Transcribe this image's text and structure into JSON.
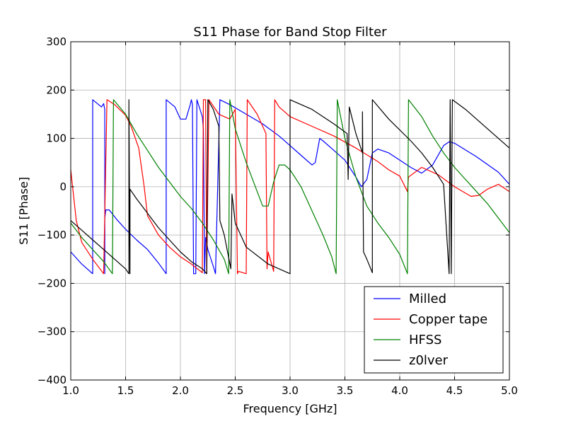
{
  "chart_data": {
    "type": "line",
    "title": "S11 Phase for Band Stop Filter",
    "xlabel": "Frequency [GHz]",
    "ylabel": "S11 [Phase]",
    "xlim": [
      1.0,
      5.0
    ],
    "ylim": [
      -400,
      300
    ],
    "xticks": [
      "1.0",
      "1.5",
      "2.0",
      "2.5",
      "3.0",
      "3.5",
      "4.0",
      "4.5",
      "5.0"
    ],
    "yticks": [
      "300",
      "200",
      "100",
      "0",
      "−100",
      "−200",
      "−300",
      "−400"
    ],
    "grid": true,
    "legend_position": "lower-right",
    "series": [
      {
        "name": "Milled",
        "color": "#0000ff",
        "points": [
          [
            1.0,
            -135
          ],
          [
            1.1,
            -160
          ],
          [
            1.2,
            -180
          ],
          [
            1.2,
            180
          ],
          [
            1.28,
            165
          ],
          [
            1.3,
            172
          ],
          [
            1.31,
            160
          ],
          [
            1.31,
            -180
          ],
          [
            1.31,
            -65
          ],
          [
            1.32,
            -48
          ],
          [
            1.35,
            -48
          ],
          [
            1.42,
            -68
          ],
          [
            1.5,
            -88
          ],
          [
            1.6,
            -110
          ],
          [
            1.7,
            -130
          ],
          [
            1.8,
            -158
          ],
          [
            1.87,
            -180
          ],
          [
            1.87,
            180
          ],
          [
            1.95,
            165
          ],
          [
            2.0,
            140
          ],
          [
            2.05,
            140
          ],
          [
            2.09,
            170
          ],
          [
            2.1,
            180
          ],
          [
            2.11,
            170
          ],
          [
            2.12,
            -180
          ],
          [
            2.14,
            -180
          ],
          [
            2.15,
            180
          ],
          [
            2.2,
            145
          ],
          [
            2.21,
            120
          ],
          [
            2.22,
            -180
          ],
          [
            2.23,
            -105
          ],
          [
            2.25,
            -130
          ],
          [
            2.3,
            -165
          ],
          [
            2.32,
            -180
          ],
          [
            2.36,
            180
          ],
          [
            2.45,
            170
          ],
          [
            2.6,
            150
          ],
          [
            2.75,
            130
          ],
          [
            2.9,
            105
          ],
          [
            3.0,
            85
          ],
          [
            3.1,
            65
          ],
          [
            3.2,
            45
          ],
          [
            3.23,
            50
          ],
          [
            3.27,
            100
          ],
          [
            3.3,
            95
          ],
          [
            3.4,
            75
          ],
          [
            3.5,
            55
          ],
          [
            3.6,
            20
          ],
          [
            3.65,
            0
          ],
          [
            3.7,
            15
          ],
          [
            3.75,
            70
          ],
          [
            3.8,
            78
          ],
          [
            3.9,
            70
          ],
          [
            4.0,
            55
          ],
          [
            4.1,
            40
          ],
          [
            4.2,
            28
          ],
          [
            4.3,
            45
          ],
          [
            4.4,
            85
          ],
          [
            4.45,
            93
          ],
          [
            4.5,
            90
          ],
          [
            4.7,
            62
          ],
          [
            4.9,
            30
          ],
          [
            5.0,
            5
          ]
        ]
      },
      {
        "name": "Copper tape",
        "color": "#ff0000",
        "points": [
          [
            1.0,
            35
          ],
          [
            1.05,
            -70
          ],
          [
            1.1,
            -115
          ],
          [
            1.2,
            -150
          ],
          [
            1.3,
            -180
          ],
          [
            1.33,
            180
          ],
          [
            1.4,
            170
          ],
          [
            1.5,
            148
          ],
          [
            1.55,
            125
          ],
          [
            1.62,
            80
          ],
          [
            1.67,
            0
          ],
          [
            1.7,
            -60
          ],
          [
            1.8,
            -100
          ],
          [
            1.9,
            -125
          ],
          [
            2.0,
            -145
          ],
          [
            2.1,
            -160
          ],
          [
            2.2,
            -178
          ],
          [
            2.21,
            180
          ],
          [
            2.23,
            180
          ],
          [
            2.24,
            -180
          ],
          [
            2.26,
            180
          ],
          [
            2.35,
            150
          ],
          [
            2.45,
            140
          ],
          [
            2.5,
            160
          ],
          [
            2.52,
            -180
          ],
          [
            2.53,
            -175
          ],
          [
            2.6,
            -180
          ],
          [
            2.61,
            180
          ],
          [
            2.7,
            150
          ],
          [
            2.76,
            120
          ],
          [
            2.78,
            110
          ],
          [
            2.79,
            -170
          ],
          [
            2.8,
            -135
          ],
          [
            2.85,
            -175
          ],
          [
            2.86,
            180
          ],
          [
            2.9,
            165
          ],
          [
            3.0,
            145
          ],
          [
            3.2,
            125
          ],
          [
            3.4,
            105
          ],
          [
            3.6,
            80
          ],
          [
            3.8,
            52
          ],
          [
            3.9,
            35
          ],
          [
            4.0,
            22
          ],
          [
            4.07,
            -10
          ],
          [
            4.08,
            20
          ],
          [
            4.2,
            40
          ],
          [
            4.35,
            25
          ],
          [
            4.5,
            0
          ],
          [
            4.65,
            -20
          ],
          [
            4.72,
            -18
          ],
          [
            4.8,
            -5
          ],
          [
            4.9,
            5
          ],
          [
            5.0,
            -10
          ]
        ]
      },
      {
        "name": "HFSS",
        "color": "#008000",
        "points": [
          [
            1.0,
            -75
          ],
          [
            1.1,
            -105
          ],
          [
            1.2,
            -130
          ],
          [
            1.3,
            -155
          ],
          [
            1.38,
            -180
          ],
          [
            1.39,
            180
          ],
          [
            1.5,
            150
          ],
          [
            1.6,
            110
          ],
          [
            1.7,
            75
          ],
          [
            1.8,
            40
          ],
          [
            1.9,
            10
          ],
          [
            2.0,
            -20
          ],
          [
            2.1,
            -45
          ],
          [
            2.2,
            -75
          ],
          [
            2.3,
            -110
          ],
          [
            2.4,
            -150
          ],
          [
            2.44,
            -180
          ],
          [
            2.45,
            180
          ],
          [
            2.5,
            120
          ],
          [
            2.6,
            50
          ],
          [
            2.7,
            -10
          ],
          [
            2.75,
            -40
          ],
          [
            2.8,
            -40
          ],
          [
            2.85,
            10
          ],
          [
            2.9,
            45
          ],
          [
            2.95,
            45
          ],
          [
            3.0,
            35
          ],
          [
            3.1,
            0
          ],
          [
            3.2,
            -50
          ],
          [
            3.3,
            -100
          ],
          [
            3.38,
            -145
          ],
          [
            3.42,
            -180
          ],
          [
            3.43,
            180
          ],
          [
            3.5,
            100
          ],
          [
            3.6,
            20
          ],
          [
            3.7,
            -40
          ],
          [
            3.8,
            -75
          ],
          [
            3.9,
            -105
          ],
          [
            4.0,
            -140
          ],
          [
            4.07,
            -180
          ],
          [
            4.08,
            180
          ],
          [
            4.2,
            145
          ],
          [
            4.3,
            105
          ],
          [
            4.4,
            70
          ],
          [
            4.5,
            40
          ],
          [
            4.6,
            15
          ],
          [
            4.7,
            -10
          ],
          [
            4.8,
            -35
          ],
          [
            4.9,
            -65
          ],
          [
            5.0,
            -95
          ]
        ]
      },
      {
        "name": "z0lver",
        "color": "#000000",
        "points": [
          [
            1.0,
            -70
          ],
          [
            1.1,
            -90
          ],
          [
            1.2,
            -110
          ],
          [
            1.3,
            -130
          ],
          [
            1.4,
            -150
          ],
          [
            1.5,
            -170
          ],
          [
            1.53,
            -180
          ],
          [
            1.53,
            180
          ],
          [
            1.54,
            -180
          ],
          [
            1.54,
            -5
          ],
          [
            1.6,
            -25
          ],
          [
            1.7,
            -55
          ],
          [
            1.8,
            -85
          ],
          [
            1.9,
            -110
          ],
          [
            2.0,
            -135
          ],
          [
            2.1,
            -155
          ],
          [
            2.2,
            -170
          ],
          [
            2.24,
            -180
          ],
          [
            2.25,
            180
          ],
          [
            2.3,
            160
          ],
          [
            2.35,
            125
          ],
          [
            2.36,
            -70
          ],
          [
            2.4,
            -100
          ],
          [
            2.46,
            -170
          ],
          [
            2.47,
            -15
          ],
          [
            2.5,
            -75
          ],
          [
            2.6,
            -125
          ],
          [
            2.8,
            -160
          ],
          [
            3.0,
            -180
          ],
          [
            3.0,
            180
          ],
          [
            3.2,
            160
          ],
          [
            3.4,
            130
          ],
          [
            3.52,
            110
          ],
          [
            3.53,
            15
          ],
          [
            3.54,
            165
          ],
          [
            3.6,
            110
          ],
          [
            3.66,
            70
          ],
          [
            3.66,
            155
          ],
          [
            3.67,
            -135
          ],
          [
            3.7,
            -150
          ],
          [
            3.75,
            -178
          ],
          [
            3.75,
            180
          ],
          [
            3.9,
            140
          ],
          [
            4.1,
            95
          ],
          [
            4.2,
            70
          ],
          [
            4.3,
            40
          ],
          [
            4.4,
            5
          ],
          [
            4.45,
            -180
          ],
          [
            4.46,
            180
          ],
          [
            4.47,
            -180
          ],
          [
            4.48,
            180
          ],
          [
            4.6,
            160
          ],
          [
            4.8,
            120
          ],
          [
            5.0,
            80
          ]
        ]
      }
    ]
  }
}
